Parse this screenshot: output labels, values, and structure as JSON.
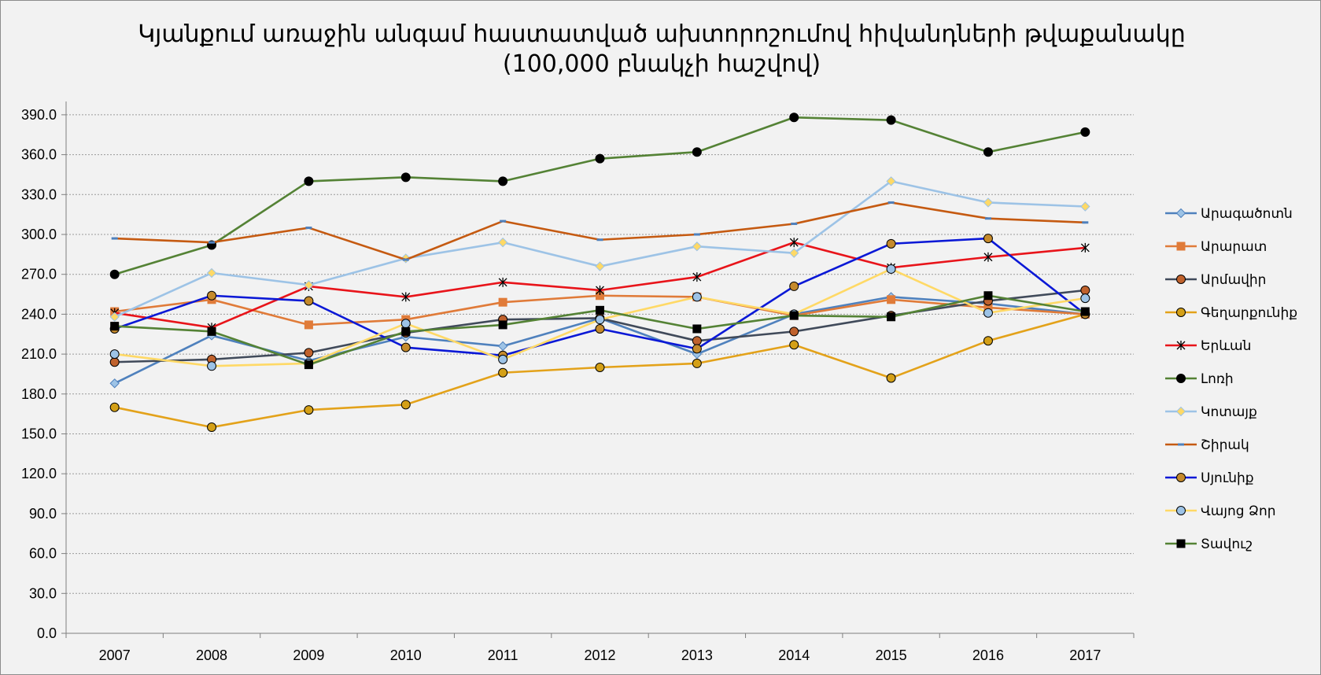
{
  "chart_data": {
    "type": "line",
    "title": "Կյանքում առաջին անգամ  հաստատված ախտորոշումով հիվանդների թվաքանակը",
    "subtitle": "(100,000 բնակչի հաշվով)",
    "xlabel": "",
    "ylabel": "",
    "categories": [
      "2007",
      "2008",
      "2009",
      "2010",
      "2011",
      "2012",
      "2013",
      "2014",
      "2015",
      "2016",
      "2017"
    ],
    "ylim": [
      0,
      400
    ],
    "yticks": [
      "0.0",
      "30.0",
      "60.0",
      "90.0",
      "120.0",
      "150.0",
      "180.0",
      "210.0",
      "240.0",
      "270.0",
      "300.0",
      "330.0",
      "360.0",
      "390.0"
    ],
    "grid": true,
    "legend_position": "right",
    "series": [
      {
        "name": "Արագածոտն",
        "color": "#4f81bd",
        "marker": "diamond",
        "marker_fill": "#9dc3e6",
        "values": [
          188,
          224,
          205,
          223,
          216,
          237,
          210,
          240,
          253,
          248,
          240
        ]
      },
      {
        "name": "Արարատ",
        "color": "#e07b39",
        "marker": "square",
        "marker_fill": "#e07b39",
        "values": [
          242,
          251,
          232,
          236,
          249,
          254,
          253,
          239,
          251,
          245,
          240
        ]
      },
      {
        "name": "Արմավիր",
        "color": "#404a5a",
        "marker": "circle",
        "marker_fill": "#c0622d",
        "values": [
          204,
          206,
          211,
          226,
          236,
          237,
          220,
          227,
          239,
          250,
          258
        ]
      },
      {
        "name": "Գեղարքունիք",
        "color": "#e3a21a",
        "marker": "circle",
        "marker_fill": "#d4a017",
        "values": [
          170,
          155,
          168,
          172,
          196,
          200,
          203,
          217,
          192,
          220,
          240
        ]
      },
      {
        "name": "Երևան",
        "color": "#e8141a",
        "marker": "star",
        "marker_fill": "#000000",
        "values": [
          241,
          230,
          261,
          253,
          264,
          258,
          268,
          294,
          275,
          283,
          290
        ]
      },
      {
        "name": "Լոռի",
        "color": "#548235",
        "marker": "circle",
        "marker_fill": "#000000",
        "values": [
          270,
          292,
          340,
          343,
          340,
          357,
          362,
          388,
          386,
          362,
          377
        ]
      },
      {
        "name": "Կոտայք",
        "color": "#9dc3e6",
        "marker": "diamond",
        "marker_fill": "#ffd966",
        "values": [
          238,
          271,
          262,
          282,
          294,
          276,
          291,
          286,
          340,
          324,
          321
        ]
      },
      {
        "name": "Շիրակ",
        "color": "#c55a11",
        "marker": "dash",
        "marker_fill": "#4f81bd",
        "values": [
          297,
          294,
          305,
          281,
          310,
          296,
          300,
          308,
          324,
          312,
          309
        ]
      },
      {
        "name": "Սյունիք",
        "color": "#0a18d6",
        "marker": "circle",
        "marker_fill": "#c58a2c",
        "values": [
          229,
          254,
          250,
          215,
          209,
          229,
          214,
          261,
          293,
          297,
          240
        ]
      },
      {
        "name": "Վայոց Ձոր",
        "color": "#ffd966",
        "marker": "circle",
        "marker_fill": "#9dc3e6",
        "values": [
          210,
          201,
          203,
          233,
          206,
          236,
          253,
          240,
          274,
          241,
          252
        ]
      },
      {
        "name": "Տավուշ",
        "color": "#548235",
        "marker": "square",
        "marker_fill": "#000000",
        "values": [
          231,
          227,
          202,
          227,
          232,
          243,
          229,
          239,
          238,
          254,
          242
        ]
      }
    ]
  }
}
